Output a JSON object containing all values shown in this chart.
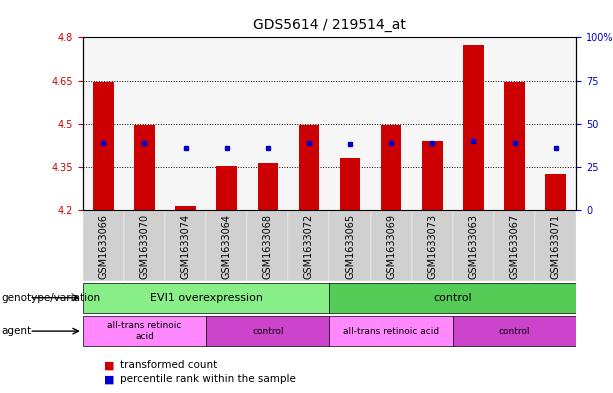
{
  "title": "GDS5614 / 219514_at",
  "samples": [
    "GSM1633066",
    "GSM1633070",
    "GSM1633074",
    "GSM1633064",
    "GSM1633068",
    "GSM1633072",
    "GSM1633065",
    "GSM1633069",
    "GSM1633073",
    "GSM1633063",
    "GSM1633067",
    "GSM1633071"
  ],
  "bar_values": [
    4.645,
    4.495,
    4.215,
    4.355,
    4.365,
    4.495,
    4.38,
    4.495,
    4.44,
    4.775,
    4.645,
    4.325
  ],
  "bar_base": 4.2,
  "percentile_values": [
    4.435,
    4.435,
    4.415,
    4.415,
    4.415,
    4.435,
    4.43,
    4.435,
    4.435,
    4.44,
    4.435,
    4.415
  ],
  "ylim": [
    4.2,
    4.8
  ],
  "yticks_left": [
    4.2,
    4.35,
    4.5,
    4.65,
    4.8
  ],
  "yticks_right": [
    0,
    25,
    50,
    75,
    100
  ],
  "ytick_labels_left": [
    "4.2",
    "4.35",
    "4.5",
    "4.65",
    "4.8"
  ],
  "ytick_labels_right": [
    "0",
    "25",
    "50",
    "75",
    "100%"
  ],
  "bar_color": "#cc0000",
  "percentile_color": "#0000cc",
  "plot_bg_color": "#ffffff",
  "genotype_groups": [
    {
      "label": "EVI1 overexpression",
      "start": 0,
      "end": 6,
      "color": "#88ee88"
    },
    {
      "label": "control",
      "start": 6,
      "end": 12,
      "color": "#55cc55"
    }
  ],
  "agent_groups": [
    {
      "label": "all-trans retinoic\nacid",
      "start": 0,
      "end": 3,
      "color": "#ff88ff"
    },
    {
      "label": "control",
      "start": 3,
      "end": 6,
      "color": "#cc44cc"
    },
    {
      "label": "all-trans retinoic acid",
      "start": 6,
      "end": 9,
      "color": "#ff88ff"
    },
    {
      "label": "control",
      "start": 9,
      "end": 12,
      "color": "#cc44cc"
    }
  ],
  "legend_items": [
    {
      "label": "transformed count",
      "color": "#cc0000"
    },
    {
      "label": "percentile rank within the sample",
      "color": "#0000cc"
    }
  ],
  "row_labels": [
    "genotype/variation",
    "agent"
  ],
  "title_fontsize": 10,
  "tick_fontsize": 7,
  "bar_width": 0.5
}
